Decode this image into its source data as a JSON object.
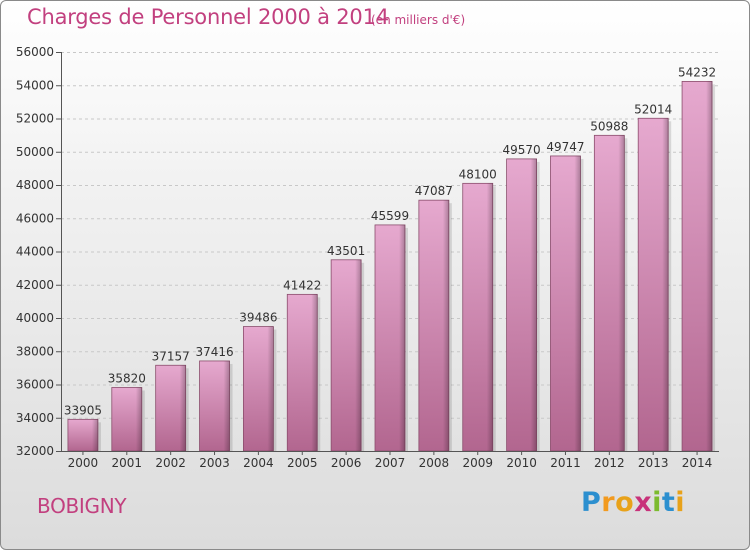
{
  "chart_data": {
    "type": "bar",
    "title": "Charges de Personnel 2000 à 2014",
    "subtitle": "(en milliers d'€)",
    "categories": [
      "2000",
      "2001",
      "2002",
      "2003",
      "2004",
      "2005",
      "2006",
      "2007",
      "2008",
      "2009",
      "2010",
      "2011",
      "2012",
      "2013",
      "2014"
    ],
    "values": [
      33905,
      35820,
      37157,
      37416,
      39486,
      41422,
      43501,
      45599,
      47087,
      48100,
      49570,
      49747,
      50988,
      52014,
      54232
    ],
    "ylim": [
      32000,
      56000
    ],
    "yticks": [
      32000,
      34000,
      36000,
      38000,
      40000,
      42000,
      44000,
      46000,
      48000,
      50000,
      52000,
      54000,
      56000
    ],
    "xlabel": "",
    "ylabel": "",
    "grid": true
  },
  "commune": "BOBIGNY",
  "logo": {
    "letters": [
      "P",
      "r",
      "o",
      "x",
      "i",
      "t",
      "i"
    ],
    "colors": [
      "#2c8fcf",
      "#f29a1f",
      "#e8a21a",
      "#c8327a",
      "#7cbb2e",
      "#2c8fcf",
      "#e8a21a"
    ]
  },
  "colors": {
    "accent": "#c2407f",
    "bar_top": "#e6a9cf",
    "bar_bottom": "#b2668f",
    "bar_edge": "#8a4d6c"
  }
}
